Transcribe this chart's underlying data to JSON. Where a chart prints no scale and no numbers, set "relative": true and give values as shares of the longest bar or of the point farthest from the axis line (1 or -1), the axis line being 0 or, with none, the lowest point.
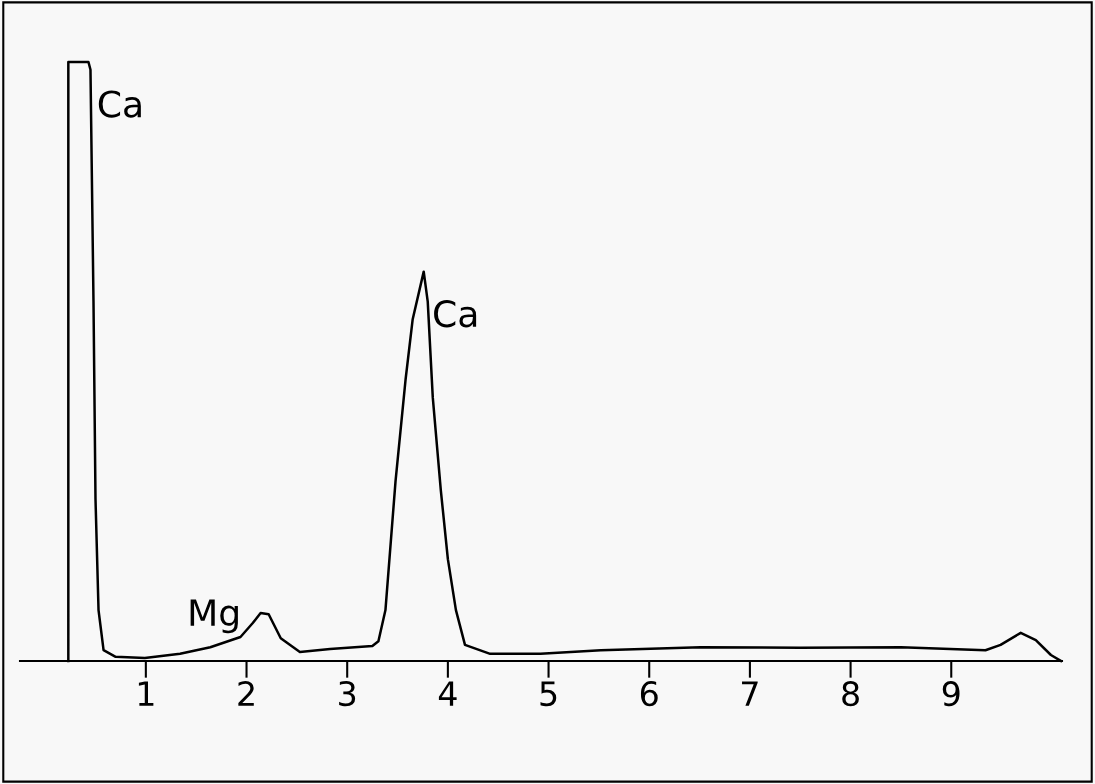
{
  "chart_data": {
    "type": "line",
    "relative": true,
    "xlim": [
      -0.25,
      10.1
    ],
    "xticks": [
      1,
      2,
      3,
      4,
      5,
      6,
      7,
      8,
      9
    ],
    "x": [
      0.23,
      0.23,
      0.43,
      0.45,
      0.48,
      0.5,
      0.53,
      0.58,
      0.7,
      0.99,
      1.34,
      1.64,
      1.94,
      2.06,
      2.14,
      2.22,
      2.34,
      2.53,
      2.83,
      3.25,
      3.31,
      3.38,
      3.48,
      3.58,
      3.65,
      3.76,
      3.8,
      3.85,
      3.93,
      4.0,
      4.08,
      4.17,
      4.42,
      4.92,
      5.52,
      6.51,
      7.5,
      8.5,
      9.34,
      9.49,
      9.69,
      9.84,
      9.99,
      10.09
    ],
    "series": [
      {
        "color": "#000000",
        "values": [
          0,
          1.0,
          1.0,
          0.987,
          0.6,
          0.27,
          0.085,
          0.018,
          0.007,
          0.005,
          0.012,
          0.023,
          0.04,
          0.063,
          0.08,
          0.078,
          0.038,
          0.015,
          0.02,
          0.025,
          0.033,
          0.085,
          0.3,
          0.47,
          0.57,
          0.65,
          0.6,
          0.44,
          0.285,
          0.17,
          0.085,
          0.027,
          0.012,
          0.012,
          0.018,
          0.023,
          0.022,
          0.023,
          0.018,
          0.027,
          0.047,
          0.035,
          0.01,
          0
        ]
      }
    ],
    "annotations": [
      {
        "text": "Ca",
        "x": 0.43,
        "y": 1.0
      },
      {
        "text": "Ca",
        "x": 3.76,
        "y": 0.65
      },
      {
        "text": "Mg",
        "x": 2.14,
        "y": 0.08
      }
    ],
    "grid": false,
    "marker": "none",
    "line_style": "solid"
  }
}
